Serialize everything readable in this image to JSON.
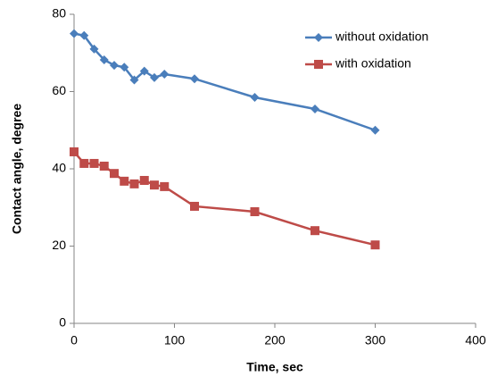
{
  "chart_data": {
    "type": "line",
    "x_label": "Time, sec",
    "y_label": "Contact angle, degree",
    "xlim": [
      0,
      400
    ],
    "xticks": [
      0,
      100,
      200,
      300,
      400
    ],
    "ylim": [
      0,
      80
    ],
    "yticks": [
      0,
      20,
      40,
      60,
      80
    ],
    "grid": false,
    "legend": "top-right",
    "series": [
      {
        "name": "without oxidation",
        "color": "#4a7ebb",
        "marker": "diamond",
        "x": [
          0,
          10,
          20,
          30,
          40,
          50,
          60,
          70,
          80,
          90,
          120,
          180,
          240,
          300
        ],
        "values": [
          75,
          74.5,
          71,
          68.2,
          66.8,
          66.3,
          63,
          65.3,
          63.6,
          64.5,
          63.3,
          58.5,
          55.5,
          50
        ]
      },
      {
        "name": "with oxidation",
        "color": "#be4b48",
        "marker": "square",
        "x": [
          0,
          10,
          20,
          30,
          40,
          50,
          60,
          70,
          80,
          90,
          120,
          180,
          240,
          300
        ],
        "values": [
          44.4,
          41.4,
          41.4,
          40.7,
          38.8,
          36.8,
          36.1,
          37,
          35.8,
          35.4,
          30.3,
          28.9,
          24,
          20.3
        ]
      }
    ]
  }
}
